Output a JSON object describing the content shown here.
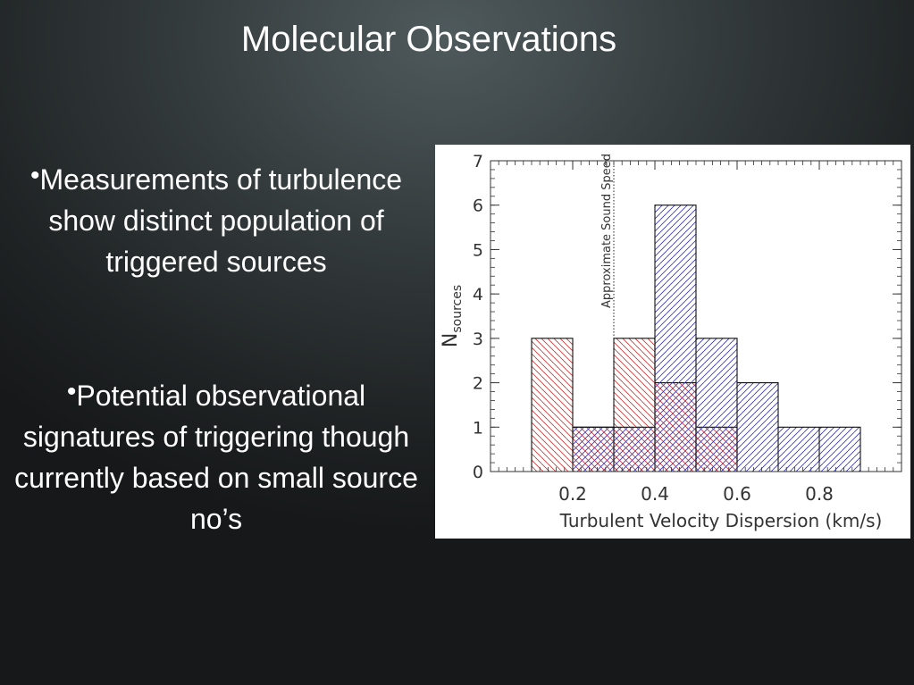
{
  "slide": {
    "title": "Molecular Observations",
    "bullets": [
      "Measurements of turbulence show distinct population of triggered sources",
      "Potential observational signatures of triggering though currently based on small source no’s"
    ]
  },
  "colors": {
    "text": "#ffffff",
    "series_red": "#cc3333",
    "series_blue": "#3333bb",
    "axis": "#333333"
  },
  "chart_data": {
    "type": "bar",
    "histogram": true,
    "xlabel": "Turbulent Velocity Dispersion (km/s)",
    "ylabel_main": "N",
    "ylabel_sub": "sources",
    "xlim": [
      0.0,
      1.0
    ],
    "ylim": [
      0,
      7
    ],
    "x_ticks": [
      0.2,
      0.4,
      0.6,
      0.8
    ],
    "x_tick_labels": [
      "0.2",
      "0.4",
      "0.6",
      "0.8"
    ],
    "y_ticks": [
      0,
      1,
      2,
      3,
      4,
      5,
      6,
      7
    ],
    "y_tick_labels": [
      "0",
      "1",
      "2",
      "3",
      "4",
      "5",
      "6",
      "7"
    ],
    "bin_width": 0.1,
    "bin_edges": [
      0.1,
      0.2,
      0.3,
      0.4,
      0.5,
      0.6,
      0.7,
      0.8,
      0.9
    ],
    "series": [
      {
        "color": "#cc3333",
        "hatch": "diagonal-down",
        "values": [
          3,
          1,
          3,
          2,
          1,
          0,
          0,
          0
        ]
      },
      {
        "color": "#3333bb",
        "hatch": "diagonal-up",
        "values": [
          0,
          1,
          1,
          6,
          3,
          2,
          1,
          1
        ]
      }
    ],
    "annotations": [
      {
        "type": "vline",
        "x": 0.3,
        "style": "dotted",
        "label": "Approximate Sound Speed"
      }
    ]
  }
}
